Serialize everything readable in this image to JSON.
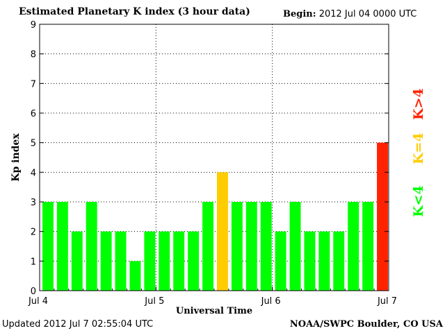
{
  "header": {
    "title": "Estimated Planetary K index (3 hour data)",
    "begin_label": "Begin:",
    "begin_value": "2012 Jul 04 0000 UTC"
  },
  "footer": {
    "updated_label": "Updated",
    "updated_value": "2012 Jul  7 02:55:04 UTC",
    "source": "NOAA/SWPC Boulder, CO USA"
  },
  "colors": {
    "low": "#00ff00",
    "equal": "#ffcc00",
    "high": "#ff2200"
  },
  "chart_data": {
    "type": "bar",
    "title": "Estimated Planetary K index (3 hour data)",
    "xlabel": "Universal Time",
    "ylabel": "Kp index",
    "ylim": [
      0,
      9
    ],
    "yticks": [
      0,
      1,
      2,
      3,
      4,
      5,
      6,
      7,
      8,
      9
    ],
    "xtick_labels": [
      "Jul 4",
      "Jul 5",
      "Jul 6",
      "Jul 7"
    ],
    "interval_hours": 3,
    "values": [
      3,
      3,
      2,
      3,
      2,
      2,
      1,
      2,
      2,
      2,
      2,
      3,
      4,
      3,
      3,
      3,
      2,
      3,
      2,
      2,
      2,
      3,
      3,
      5
    ],
    "grid": true,
    "legend": [
      {
        "label": "K<4",
        "color": "#00ff00"
      },
      {
        "label": "K=4",
        "color": "#ffcc00"
      },
      {
        "label": "K>4",
        "color": "#ff2200"
      }
    ],
    "legend_position": "right"
  }
}
